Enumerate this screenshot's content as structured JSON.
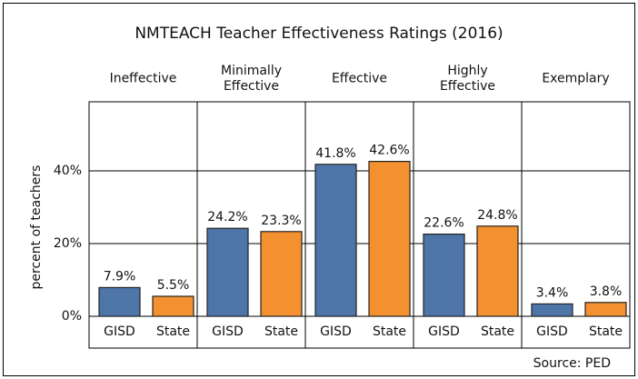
{
  "chart_data": {
    "type": "bar",
    "title": "NMTEACH Teacher Effectiveness Ratings (2016)",
    "categories": [
      "Ineffective",
      "Minimally Effective",
      "Effective",
      "Highly Effective",
      "Exemplary"
    ],
    "series": [
      {
        "name": "GISD",
        "color": "#4e75a8",
        "values": [
          7.9,
          24.2,
          41.8,
          22.6,
          3.4
        ],
        "value_labels": [
          "7.9%",
          "24.2%",
          "41.8%",
          "22.6%",
          "3.4%"
        ]
      },
      {
        "name": "State",
        "color": "#f39130",
        "values": [
          5.5,
          23.3,
          42.6,
          24.8,
          3.8
        ],
        "value_labels": [
          "5.5%",
          "23.3%",
          "42.6%",
          "24.8%",
          "3.8%"
        ]
      }
    ],
    "y_label": "percent of teachers",
    "ylim": [
      0,
      59
    ],
    "yticks": [
      {
        "value": 0,
        "label": "0%"
      },
      {
        "value": 20,
        "label": "20%"
      },
      {
        "value": 40,
        "label": "40%"
      }
    ],
    "grid": true,
    "source": "Source: PED"
  }
}
